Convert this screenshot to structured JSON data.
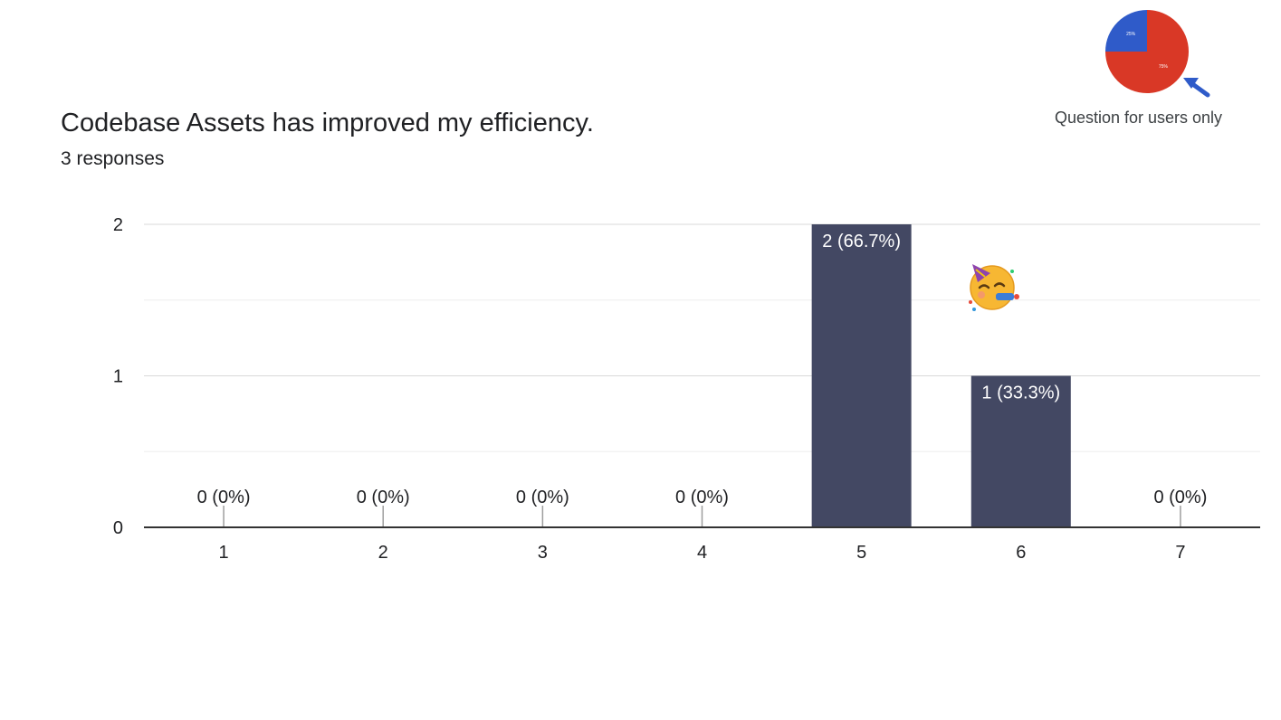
{
  "question": {
    "title": "Codebase Assets has improved my efficiency.",
    "responses": "3 responses"
  },
  "inset": {
    "caption": "Question for users only",
    "slices": [
      {
        "label": "75%",
        "value": 75,
        "color": "#d93826"
      },
      {
        "label": "25%",
        "value": 25,
        "color": "#2f5bc9"
      }
    ],
    "arrow_icon": "arrow-pointer-icon",
    "arrow_color": "#2f5bc9"
  },
  "decoration": {
    "icon": "party-face-icon"
  },
  "chart_data": {
    "type": "bar",
    "categories": [
      "1",
      "2",
      "3",
      "4",
      "5",
      "6",
      "7"
    ],
    "values": [
      0,
      0,
      0,
      0,
      2,
      1,
      0
    ],
    "data_labels": [
      "0 (0%)",
      "0 (0%)",
      "0 (0%)",
      "0 (0%)",
      "2 (66.7%)",
      "1 (33.3%)",
      "0 (0%)"
    ],
    "y_ticks": [
      "0",
      "1",
      "2"
    ],
    "ylim": [
      0,
      2
    ],
    "grid": true,
    "bar_color": "#434863",
    "xlabel": "",
    "ylabel": ""
  }
}
